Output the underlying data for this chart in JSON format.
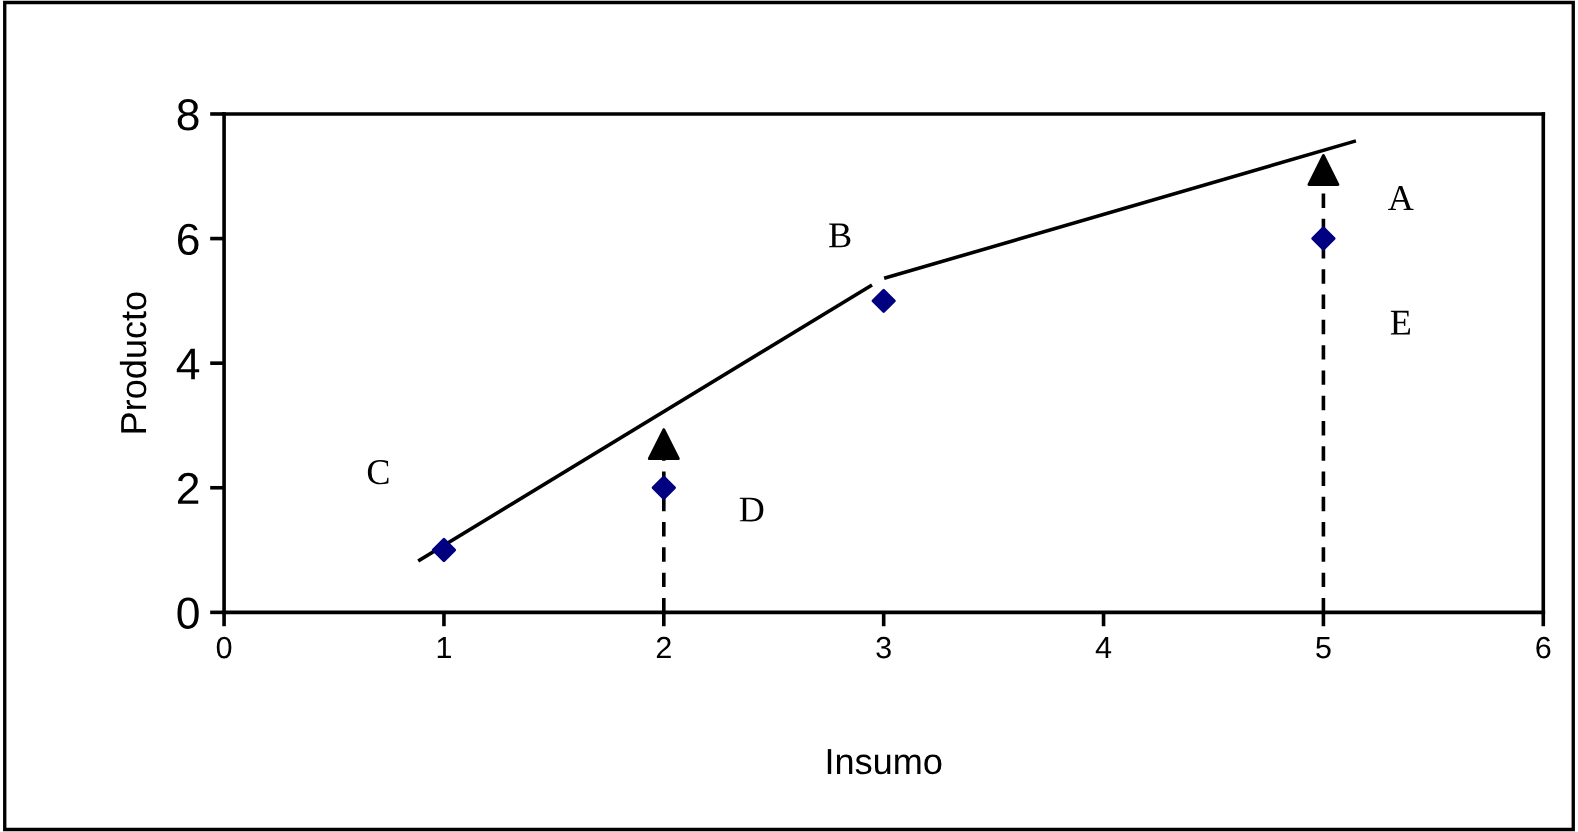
{
  "chart_data": {
    "type": "scatter",
    "xlabel": "Insumo",
    "ylabel": "Producto",
    "xlim": [
      0,
      6
    ],
    "xticks": [
      0,
      1,
      2,
      3,
      4,
      5,
      6
    ],
    "ylim": [
      0,
      8
    ],
    "yticks": [
      0,
      2,
      4,
      6,
      8
    ],
    "series": [
      {
        "type": "line",
        "x": [
          0.89,
          2.94
        ],
        "values": [
          0.84,
          5.24
        ],
        "color": "#000000",
        "marker": "none",
        "line_style": "solid"
      },
      {
        "type": "line",
        "x": [
          3.01,
          5.14
        ],
        "values": [
          5.37,
          7.56
        ],
        "color": "#000000",
        "marker": "none",
        "line_style": "solid"
      },
      {
        "x": [
          1,
          2,
          3,
          5
        ],
        "values": [
          1,
          2,
          5,
          6
        ],
        "color": "#000080",
        "marker": "diamond"
      },
      {
        "x": [
          2,
          5
        ],
        "values": [
          2.7,
          7.1
        ],
        "color": "#000000",
        "marker": "triangle"
      }
    ],
    "annotations": [
      "C",
      "D",
      "B",
      "A",
      "E"
    ]
  }
}
